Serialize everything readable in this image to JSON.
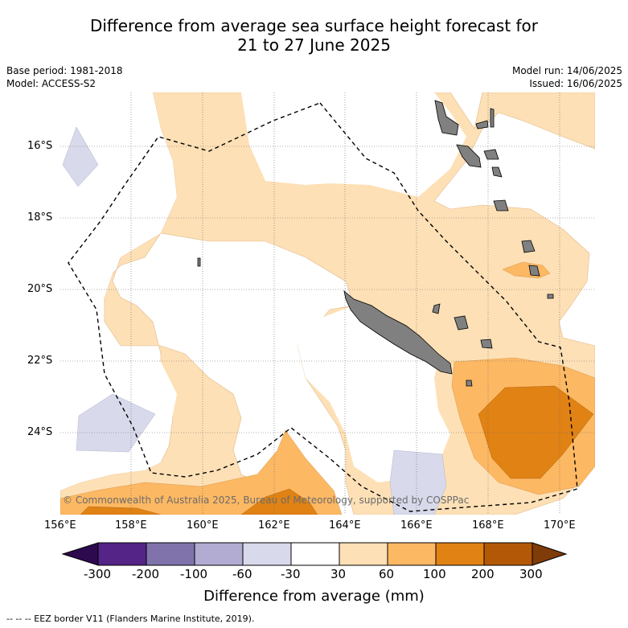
{
  "title_line1": "Difference from average sea surface height forecast for",
  "title_line2": "21 to 27 June 2025",
  "base_period": "Base period: 1981-2018",
  "model": "Model: ACCESS-S2",
  "model_run": "Model run: 14/06/2025",
  "issued": "Issued: 16/06/2025",
  "lat_labels": [
    "16°S",
    "18°S",
    "20°S",
    "22°S",
    "24°S"
  ],
  "lon_labels": [
    "156°E",
    "158°E",
    "160°E",
    "162°E",
    "164°E",
    "166°E",
    "168°E",
    "170°E"
  ],
  "colorbar": {
    "ticks": [
      "-300",
      "-200",
      "-100",
      "-60",
      "-30",
      "30",
      "60",
      "100",
      "200",
      "300"
    ],
    "colors": [
      "#2d0a4e",
      "#542487",
      "#8073ac",
      "#b2abd2",
      "#d8daeb",
      "#ffffff",
      "#fee0b6",
      "#fdb863",
      "#e08214",
      "#b35806",
      "#7f3b08"
    ],
    "label": "Difference from average (mm)"
  },
  "credit": "© Commonwealth of Australia 2025, Bureau of Meteorology, supported by COSPPac",
  "footer": "-- -- -- EEZ border V11 (Flanders Marine Institute, 2019)."
}
